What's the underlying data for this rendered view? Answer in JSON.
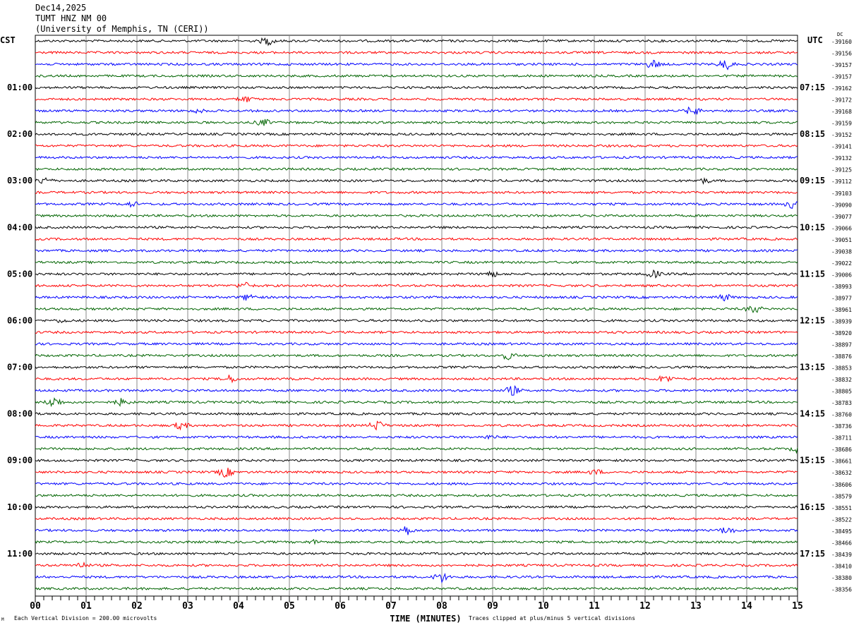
{
  "header": {
    "date": "Dec14,2025",
    "station": "TUMT HNZ NM 00",
    "institution": "(University of Memphis, TN (CERI))"
  },
  "chart_data": {
    "type": "line",
    "title": "TUMT HNZ NM 00",
    "xlabel": "TIME (MINUTES)",
    "xlim": [
      0,
      15
    ],
    "x_ticks": [
      "00",
      "01",
      "02",
      "03",
      "04",
      "05",
      "06",
      "07",
      "08",
      "09",
      "10",
      "11",
      "12",
      "13",
      "14",
      "15"
    ],
    "left_axis_label": "CST",
    "right_axis_label": "UTC",
    "dc_label": "DC",
    "left_hour_labels": [
      "01:00",
      "02:00",
      "03:00",
      "04:00",
      "05:00",
      "06:00",
      "07:00",
      "08:00",
      "09:00",
      "10:00",
      "11:00"
    ],
    "right_hour_labels": [
      "07:15",
      "08:15",
      "09:15",
      "10:15",
      "11:15",
      "12:15",
      "13:15",
      "14:15",
      "15:15",
      "16:15",
      "17:15"
    ],
    "trace_colors": [
      "#000000",
      "#ff0000",
      "#0000ff",
      "#006400"
    ],
    "dc_offsets": [
      -39160,
      -39156,
      -39157,
      -39157,
      -39162,
      -39172,
      -39168,
      -39159,
      -39152,
      -39141,
      -39132,
      -39125,
      -39112,
      -39103,
      -39090,
      -39077,
      -39066,
      -39051,
      -39038,
      -39022,
      -39006,
      -38993,
      -38977,
      -38961,
      -38939,
      -38920,
      -38897,
      -38876,
      -38853,
      -38832,
      -38805,
      -38783,
      -38760,
      -38736,
      -38711,
      -38686,
      -38661,
      -38632,
      -38606,
      -38579,
      -38551,
      -38522,
      -38495,
      -38466,
      -38439,
      -38410,
      -38380,
      -38356
    ],
    "scale_note": "Each Vertical Division =  200.00 microvolts",
    "clip_note": "Traces clipped at plus/minus 5 vertical divisions",
    "corner_mark": "M"
  }
}
